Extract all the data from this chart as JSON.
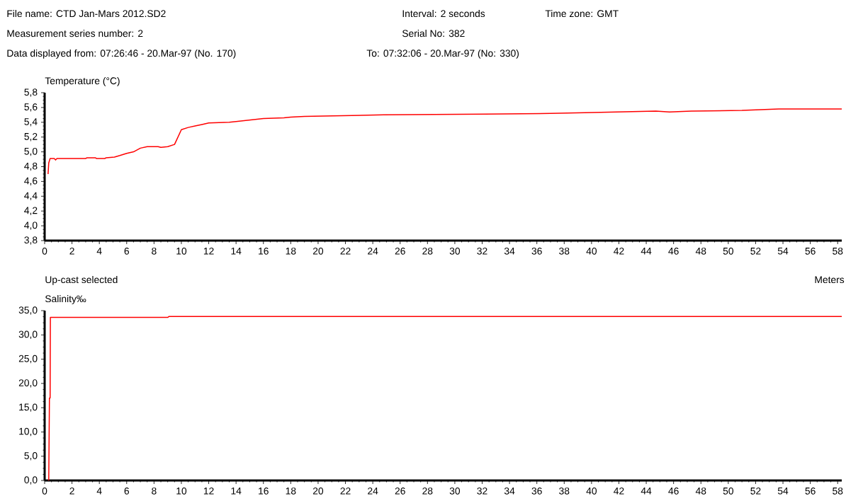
{
  "chart_data": [
    {
      "type": "line",
      "annotations": [
        "File name: CTD Jan-Mars 2012.SD2",
        "Interval: 2 seconds",
        "Time zone: GMT",
        "Measurement series number: 2",
        "Serial No: 382",
        "Data displayed from: 07:26:46 - 20.Mar-97 (No. 170)",
        "To: 07:32:06 - 20.Mar-97 (No: 330)"
      ],
      "ylabel": "Temperature (°C)",
      "xlim": [
        0,
        58.3
      ],
      "xticks": [
        0,
        2,
        4,
        6,
        8,
        10,
        12,
        14,
        16,
        18,
        20,
        22,
        24,
        26,
        28,
        30,
        32,
        34,
        36,
        38,
        40,
        42,
        44,
        46,
        48,
        50,
        52,
        54,
        56,
        58
      ],
      "ylim": [
        3.8,
        5.8
      ],
      "yticks": [
        {
          "value": 3.8,
          "label": "3,8"
        },
        {
          "value": 4.0,
          "label": "4,0"
        },
        {
          "value": 4.2,
          "label": "4,2"
        },
        {
          "value": 4.4,
          "label": "4,4"
        },
        {
          "value": 4.6,
          "label": "4,6"
        },
        {
          "value": 4.8,
          "label": "4,8"
        },
        {
          "value": 5.0,
          "label": "5,0"
        },
        {
          "value": 5.2,
          "label": "5,2"
        },
        {
          "value": 5.4,
          "label": "5,4"
        },
        {
          "value": 5.6,
          "label": "5,6"
        },
        {
          "value": 5.8,
          "label": "5,8"
        }
      ],
      "series": [
        {
          "color": "#ff0000",
          "x": [
            0.25,
            0.3,
            0.4,
            0.7,
            0.8,
            0.9,
            3.0,
            3.1,
            3.7,
            3.8,
            4.4,
            4.5,
            5.1,
            5.5,
            6.0,
            6.5,
            7.0,
            7.5,
            8.3,
            8.5,
            9.0,
            9.5,
            10.0,
            10.5,
            11.0,
            11.5,
            12.0,
            13.5,
            14.0,
            15.0,
            16.0,
            17.5,
            18.0,
            19.0,
            24.8,
            32.2,
            37.0,
            39.5,
            44.7,
            45.7,
            47.3,
            51.0,
            53.7,
            58.3
          ],
          "values": [
            4.7,
            4.85,
            4.91,
            4.91,
            4.89,
            4.91,
            4.91,
            4.92,
            4.92,
            4.91,
            4.91,
            4.92,
            4.93,
            4.95,
            4.98,
            5.0,
            5.05,
            5.07,
            5.07,
            5.06,
            5.07,
            5.1,
            5.3,
            5.33,
            5.35,
            5.37,
            5.39,
            5.4,
            5.41,
            5.43,
            5.45,
            5.46,
            5.47,
            5.48,
            5.5,
            5.51,
            5.52,
            5.53,
            5.55,
            5.54,
            5.55,
            5.56,
            5.58,
            5.58
          ]
        }
      ]
    },
    {
      "type": "line",
      "annotations": [
        "Up-cast selected"
      ],
      "ylabel": "Salinity‰",
      "xlabel": "Meters",
      "xlim": [
        0,
        58.3
      ],
      "xticks": [
        0,
        2,
        4,
        6,
        8,
        10,
        12,
        14,
        16,
        18,
        20,
        22,
        24,
        26,
        28,
        30,
        32,
        34,
        36,
        38,
        40,
        42,
        44,
        46,
        48,
        50,
        52,
        54,
        56,
        58
      ],
      "ylim": [
        0,
        35
      ],
      "yticks": [
        {
          "value": 0,
          "label": "0,0"
        },
        {
          "value": 5,
          "label": "5,0"
        },
        {
          "value": 10,
          "label": "10,0"
        },
        {
          "value": 15,
          "label": "15,0"
        },
        {
          "value": 20,
          "label": "20,0"
        },
        {
          "value": 25,
          "label": "25,0"
        },
        {
          "value": 30,
          "label": "30,0"
        },
        {
          "value": 35,
          "label": "35,0"
        }
      ],
      "series": [
        {
          "color": "#ff0000",
          "x": [
            0.3,
            0.35,
            0.4,
            0.42,
            9.0,
            9.1,
            58.3
          ],
          "values": [
            0,
            17,
            17,
            33.6,
            33.6,
            33.8,
            33.8
          ]
        }
      ]
    }
  ]
}
